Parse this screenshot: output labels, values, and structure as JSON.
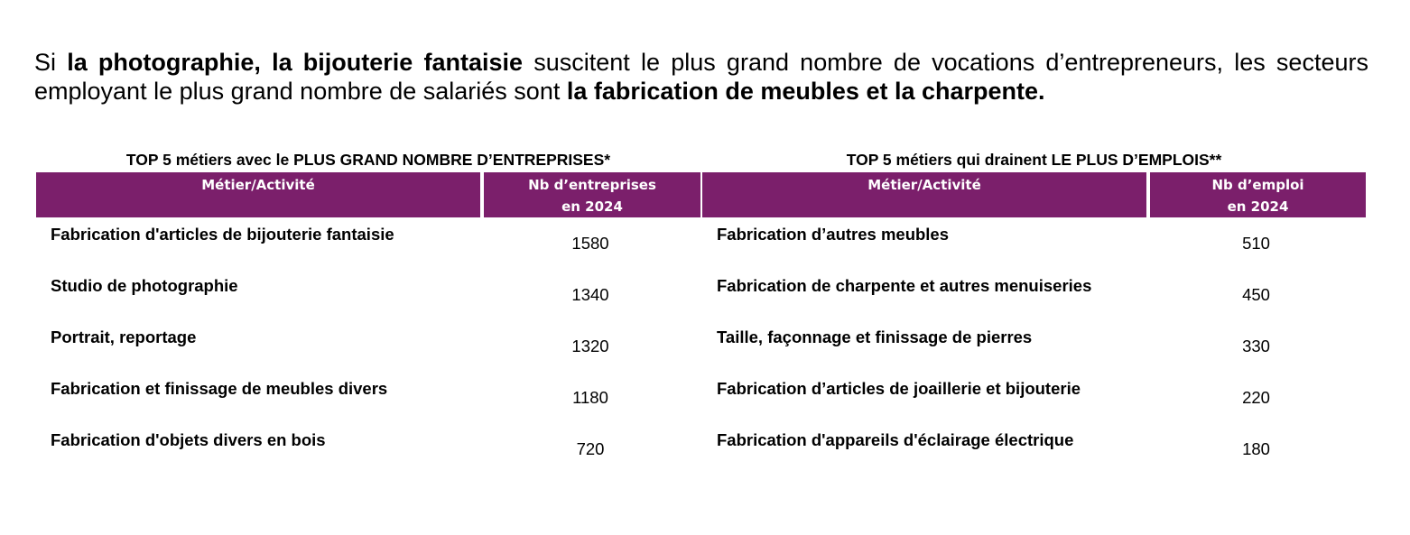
{
  "intro": {
    "t1": "Si ",
    "b1": "la photographie, la bijouterie fantaisie",
    "t2": " suscitent le plus grand nombre de vocations d’entrepreneurs, les secteurs employant le plus grand nombre de salariés sont ",
    "b2": "la fabrication de meubles et la charpente."
  },
  "left_table": {
    "title": "TOP 5 métiers avec le PLUS GRAND NOMBRE D’ENTREPRISES*",
    "col_activity": "Métier/Activité",
    "col_count_line1": "Nb d’entreprises",
    "col_count_line2": "en 2024",
    "rows": [
      {
        "activity": "Fabrication d'articles de bijouterie fantaisie",
        "count": "1580"
      },
      {
        "activity": "Studio de photographie",
        "count": "1340"
      },
      {
        "activity": "Portrait, reportage",
        "count": "1320"
      },
      {
        "activity": "Fabrication et finissage de meubles divers",
        "count": "1180"
      },
      {
        "activity": "Fabrication d'objets divers en bois",
        "count": "720"
      }
    ]
  },
  "right_table": {
    "title": "TOP 5 métiers qui drainent LE PLUS D’EMPLOIS**",
    "col_activity": "Métier/Activité",
    "col_count_line1": "Nb d’emploi",
    "col_count_line2": "en 2024",
    "rows": [
      {
        "activity": "Fabrication d’autres meubles",
        "count": "510"
      },
      {
        "activity": "Fabrication de charpente et autres menuiseries",
        "count": "450"
      },
      {
        "activity": "Taille, façonnage et finissage de pierres",
        "count": "330"
      },
      {
        "activity": "Fabrication d’articles de joaillerie et bijouterie",
        "count": "220"
      },
      {
        "activity": "Fabrication d'appareils d'éclairage électrique",
        "count": "180"
      }
    ]
  },
  "colors": {
    "header_background": "#7b1f6b",
    "header_text": "#ffffff",
    "body_text": "#000000"
  }
}
